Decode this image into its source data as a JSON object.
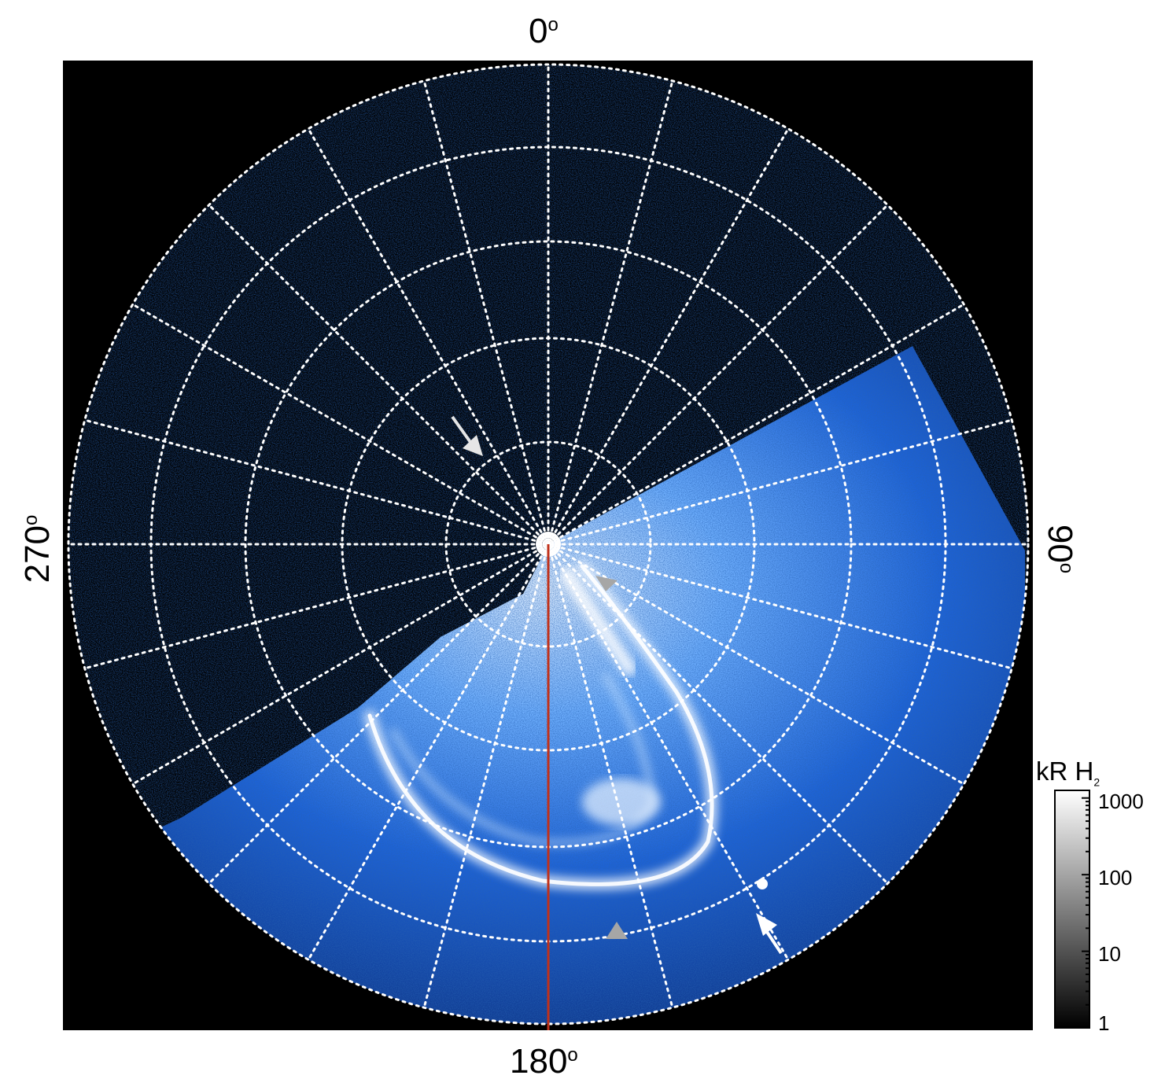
{
  "figure": {
    "labels": {
      "top": "0",
      "right": "90",
      "bottom": "180",
      "left": "270",
      "degree_symbol": "o"
    },
    "colorbar": {
      "title_main": "kR H",
      "title_sub": "2",
      "ticks": [
        "1000",
        "100",
        "10",
        "1"
      ],
      "scale": "log"
    },
    "colors": {
      "background": "#000000",
      "grid": "#ffffff",
      "aurora_blue": "#1a5fd4",
      "aurora_bright": "#e8f2ff",
      "meridian_line": "#c0311a",
      "arrow_white": "#ffffff",
      "arrow_grey": "#9a9a9a"
    }
  }
}
